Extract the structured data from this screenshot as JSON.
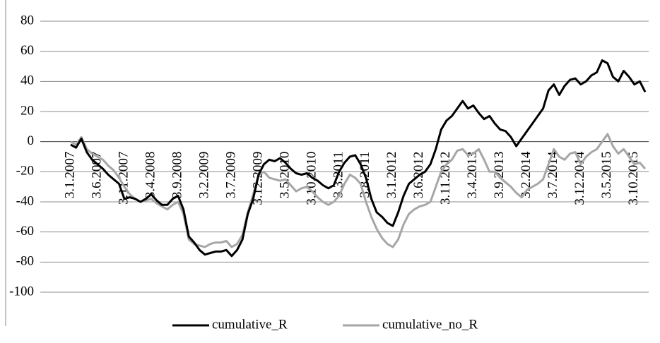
{
  "chart_data": {
    "type": "line",
    "categories": [
      "3.1.2007",
      null,
      null,
      null,
      null,
      "3.6.2007",
      null,
      null,
      null,
      null,
      "3.11.2007",
      null,
      null,
      null,
      null,
      "3.4.2008",
      null,
      null,
      null,
      null,
      "3.9.2008",
      null,
      null,
      null,
      null,
      "3.2.2009",
      null,
      null,
      null,
      null,
      "3.7.2009",
      null,
      null,
      null,
      null,
      "3.12.2009",
      null,
      null,
      null,
      null,
      "3.5.2010",
      null,
      null,
      null,
      null,
      "3.10.2010",
      null,
      null,
      null,
      null,
      "3.3.2011",
      null,
      null,
      null,
      null,
      "3.8.2011",
      null,
      null,
      null,
      null,
      "3.1.2012",
      null,
      null,
      null,
      null,
      "3.6.2012",
      null,
      null,
      null,
      null,
      "3.11.2012",
      null,
      null,
      null,
      null,
      "3.4.2013",
      null,
      null,
      null,
      null,
      "3.9.2013",
      null,
      null,
      null,
      null,
      "3.2.2014",
      null,
      null,
      null,
      null,
      "3.7.2014",
      null,
      null,
      null,
      null,
      "3.12.2014",
      null,
      null,
      null,
      null,
      "3.5.2015",
      null,
      null,
      null,
      null,
      "3.10.2015",
      null,
      null
    ],
    "series": [
      {
        "name": "cumulative_R",
        "color": "#000000",
        "values": [
          -2,
          -4,
          2,
          -7,
          -12,
          -15,
          -18,
          -22,
          -25,
          -28,
          -38,
          -37,
          -38,
          -40,
          -38,
          -35,
          -39,
          -42,
          -42,
          -38,
          -36,
          -45,
          -63,
          -67,
          -72,
          -75,
          -74,
          -73,
          -73,
          -72,
          -76,
          -72,
          -65,
          -48,
          -38,
          -22,
          -15,
          -12,
          -13,
          -11,
          -14,
          -18,
          -21,
          -22,
          -21,
          -24,
          -26,
          -29,
          -31,
          -29,
          -20,
          -14,
          -10,
          -9,
          -15,
          -24,
          -38,
          -47,
          -50,
          -54,
          -56,
          -47,
          -36,
          -28,
          -25,
          -22,
          -20,
          -15,
          -5,
          8,
          14,
          17,
          22,
          27,
          22,
          24,
          19,
          15,
          17,
          12,
          8,
          7,
          3,
          -3,
          2,
          7,
          12,
          17,
          22,
          34,
          38,
          31,
          37,
          41,
          42,
          38,
          40,
          44,
          46,
          54,
          52,
          43,
          40,
          47,
          43,
          38,
          40,
          33
        ]
      },
      {
        "name": "cumulative_no_R",
        "color": "#a6a6a6",
        "values": [
          0,
          -2,
          3,
          -5,
          -8,
          -10,
          -12,
          -16,
          -19,
          -24,
          -30,
          -35,
          -38,
          -40,
          -39,
          -38,
          -41,
          -43,
          -45,
          -42,
          -40,
          -48,
          -65,
          -68,
          -69,
          -70,
          -68,
          -67,
          -67,
          -66,
          -70,
          -68,
          -62,
          -47,
          -35,
          -22,
          -20,
          -24,
          -25,
          -26,
          -25,
          -29,
          -33,
          -31,
          -30,
          -33,
          -37,
          -40,
          -42,
          -40,
          -36,
          -28,
          -22,
          -24,
          -28,
          -40,
          -50,
          -58,
          -64,
          -68,
          -70,
          -65,
          -55,
          -48,
          -45,
          -43,
          -42,
          -40,
          -30,
          -20,
          -15,
          -12,
          -6,
          -5,
          -9,
          -8,
          -5,
          -12,
          -20,
          -20,
          -24,
          -27,
          -30,
          -34,
          -37,
          -32,
          -30,
          -28,
          -25,
          -15,
          -5,
          -10,
          -12,
          -8,
          -7,
          -15,
          -10,
          -7,
          -5,
          0,
          5,
          -3,
          -8,
          -5,
          -10,
          -15,
          -14,
          -18
        ]
      }
    ],
    "ylim": [
      -100,
      80
    ],
    "yticks": [
      -100,
      -80,
      -60,
      -40,
      -20,
      0,
      20,
      40,
      60,
      80
    ],
    "grid": true
  }
}
